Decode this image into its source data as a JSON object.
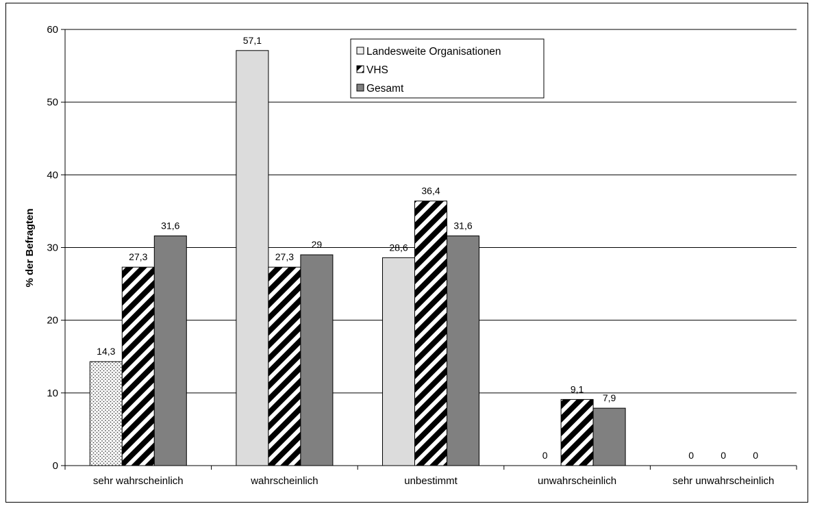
{
  "chart_data": {
    "type": "bar",
    "ylabel": "% der Befragten",
    "xlabel": "",
    "ylim": [
      0,
      60
    ],
    "yticks": [
      0,
      10,
      20,
      30,
      40,
      50,
      60
    ],
    "grid": true,
    "legend_position": "top-center",
    "categories": [
      "sehr wahrscheinlich",
      "wahrscheinlich",
      "unbestimmt",
      "unwahrscheinlich",
      "sehr unwahrscheinlich"
    ],
    "series": [
      {
        "name": "Landesweite Organisationen",
        "values": [
          14.3,
          57.1,
          28.6,
          0,
          0
        ],
        "labels": [
          "14,3",
          "57,1",
          "28,6",
          "0",
          "0"
        ]
      },
      {
        "name": "VHS",
        "values": [
          27.3,
          27.3,
          36.4,
          9.1,
          0
        ],
        "labels": [
          "27,3",
          "27,3",
          "36,4",
          "9,1",
          "0"
        ]
      },
      {
        "name": "Gesamt",
        "values": [
          31.6,
          29,
          31.6,
          7.9,
          0
        ],
        "labels": [
          "31,6",
          "29",
          "31,6",
          "7,9",
          "0"
        ]
      }
    ]
  }
}
